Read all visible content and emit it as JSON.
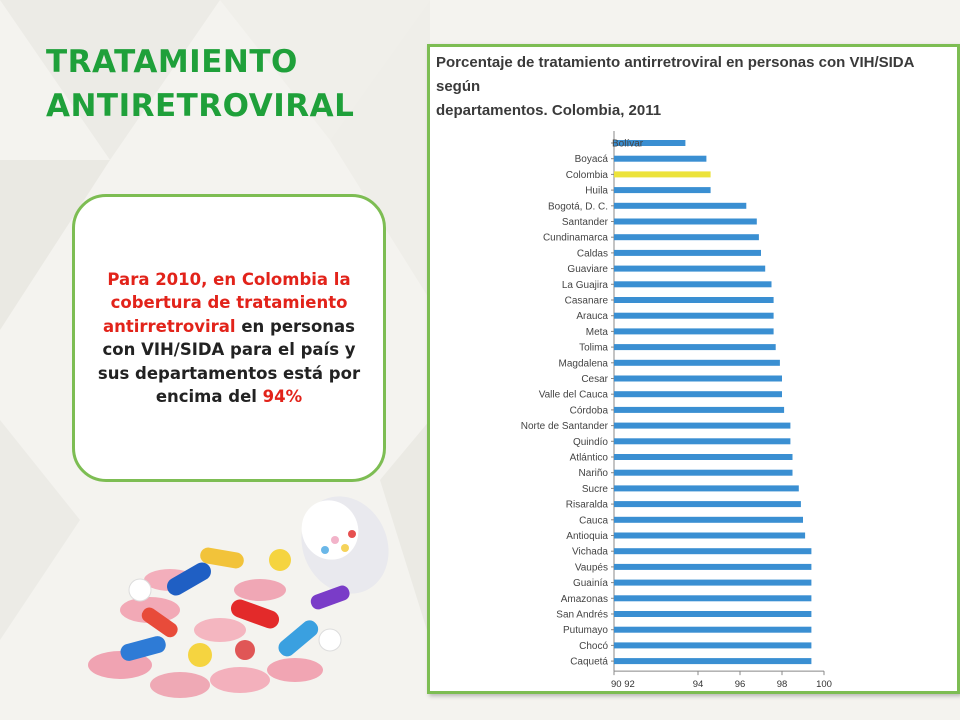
{
  "slide": {
    "title_line1": "TRATAMIENTO",
    "title_line2": "ANTIRETROVIRAL"
  },
  "callout": {
    "part1": "Para 2010, en Colombia la cobertura de tratamiento antirretroviral",
    "part2": " en personas con VIH/SIDA para el país y sus departamentos está por encima del ",
    "part3": "94%"
  },
  "colors": {
    "title_green": "#1fa03a",
    "border_green": "#7dbd53",
    "highlight_red": "#e2231a",
    "bar_blue": "#3a8fd2",
    "bar_highlight": "#ece33b"
  },
  "chart_data": {
    "type": "bar",
    "orientation": "horizontal",
    "title_line1": "Porcentaje de tratamiento antirretroviral en personas con VIH/SIDA según",
    "title_line2": "departamentos. Colombia, 2011",
    "categories": [
      "Bolívar",
      "Boyacá",
      "Colombia",
      "Huila",
      "Bogotá, D. C.",
      "Santander",
      "Cundinamarca",
      "Caldas",
      "Guaviare",
      "La Guajira",
      "Casanare",
      "Arauca",
      "Meta",
      "Tolima",
      "Magdalena",
      "Cesar",
      "Valle del Cauca",
      "Córdoba",
      "Norte de Santander",
      "Quindío",
      "Atlántico",
      "Nariño",
      "Sucre",
      "Risaralda",
      "Cauca",
      "Antioquia",
      "Vichada",
      "Vaupés",
      "Guainía",
      "Amazonas",
      "San Andrés",
      "Putumayo",
      "Chocó",
      "Caquetá"
    ],
    "values": [
      93.4,
      94.4,
      94.6,
      94.6,
      96.3,
      96.8,
      96.9,
      97.0,
      97.2,
      97.5,
      97.6,
      97.6,
      97.6,
      97.7,
      97.9,
      98.0,
      98.0,
      98.1,
      98.4,
      98.4,
      98.5,
      98.5,
      98.8,
      98.9,
      99.0,
      99.1,
      99.4,
      99.4,
      99.4,
      99.4,
      99.4,
      99.4,
      99.4,
      99.4
    ],
    "highlight": "Colombia",
    "xlim": [
      90,
      100
    ],
    "x_tick_labels": [
      "90 92",
      "94",
      "96",
      "98",
      "100"
    ],
    "x_tick_values": [
      90,
      94,
      96,
      98,
      100
    ]
  }
}
